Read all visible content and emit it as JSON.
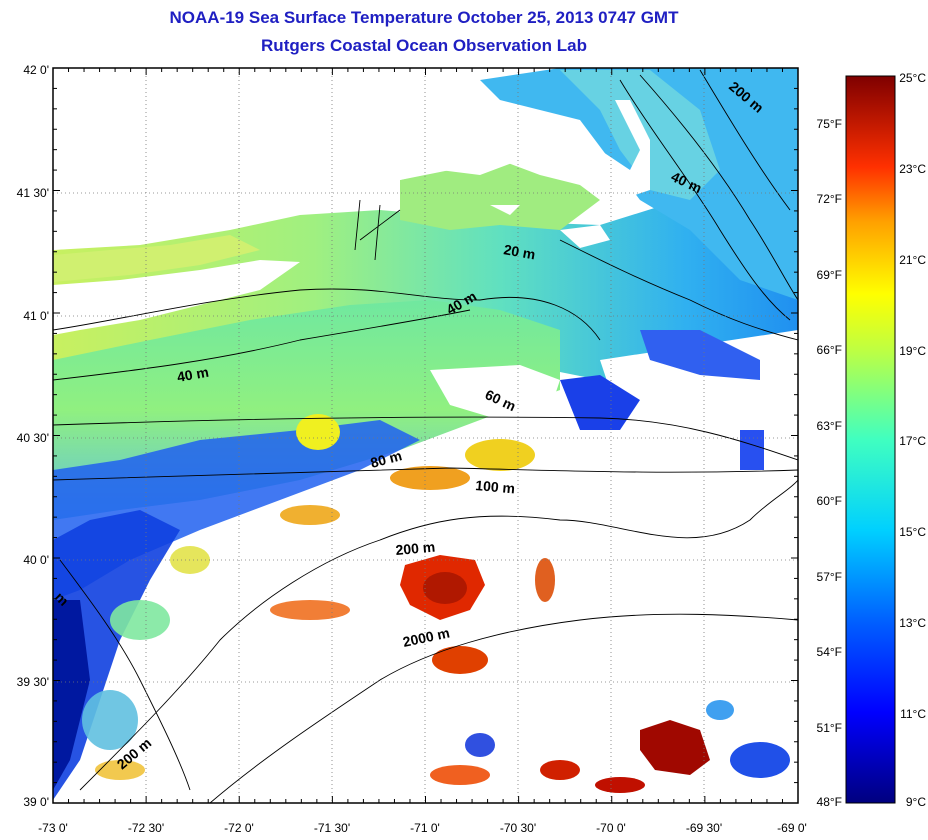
{
  "title": "NOAA-19 Sea Surface Temperature October 25, 2013 0747 GMT",
  "subtitle": "Rutgers Coastal Ocean Observation Lab",
  "lon_ticks": [
    "-73 0'",
    "-72 30'",
    "-72 0'",
    "-71 30'",
    "-71 0'",
    "-70 30'",
    "-70 0'",
    "-69 30'",
    "-69 0'"
  ],
  "lat_ticks": [
    "42 0'",
    "41 30'",
    "41 0'",
    "40 30'",
    "40 0'",
    "39 30'",
    "39 0'"
  ],
  "colorbar": {
    "celsius_labels": [
      "25°C",
      "23°C",
      "21°C",
      "19°C",
      "17°C",
      "15°C",
      "13°C",
      "11°C",
      "9°C"
    ],
    "fahrenheit_labels": [
      "75°F",
      "72°F",
      "69°F",
      "66°F",
      "63°F",
      "60°F",
      "57°F",
      "54°F",
      "51°F",
      "48°F"
    ]
  },
  "contour_labels": [
    "200 m",
    "40 m",
    "20 m",
    "40 m",
    "40 m",
    "60 m",
    "80 m",
    "100 m",
    "200 m",
    "2000 m",
    "m",
    "200 m"
  ],
  "colors": {
    "title": "#1f1fc2",
    "land": "#ffffff",
    "cold": "#00007f",
    "warm": "#7f0000"
  }
}
